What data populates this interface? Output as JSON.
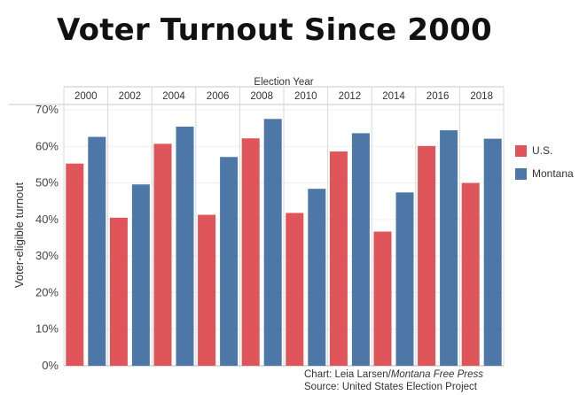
{
  "title": "Voter Turnout Since 2000",
  "colors": {
    "us": "#e0555a",
    "montana": "#4c77a6"
  },
  "legend": [
    {
      "label": "U.S.",
      "color": "#e0555a"
    },
    {
      "label": "Montana",
      "color": "#4c77a6"
    }
  ],
  "credits": {
    "chart_prefix": "Chart: Leia Larsen/",
    "chart_outlet": "Montana Free Press",
    "source": "Source: United States Election Project"
  },
  "chart_data": {
    "type": "bar",
    "xlabel": "Election Year",
    "ylabel": "Voter-eligible turnout",
    "ylim": [
      0,
      70
    ],
    "yticks": [
      "0%",
      "10%",
      "20%",
      "30%",
      "40%",
      "50%",
      "60%",
      "70%"
    ],
    "categories": [
      "2000",
      "2002",
      "2004",
      "2006",
      "2008",
      "2010",
      "2012",
      "2014",
      "2016",
      "2018"
    ],
    "series": [
      {
        "name": "U.S.",
        "values": [
          55.3,
          40.5,
          60.7,
          41.3,
          62.2,
          41.8,
          58.6,
          36.7,
          60.1,
          50.0
        ]
      },
      {
        "name": "Montana",
        "values": [
          62.6,
          49.6,
          65.4,
          57.1,
          67.5,
          48.4,
          63.6,
          47.4,
          64.4,
          62.1
        ]
      }
    ],
    "grid": true,
    "legend_position": "right"
  }
}
